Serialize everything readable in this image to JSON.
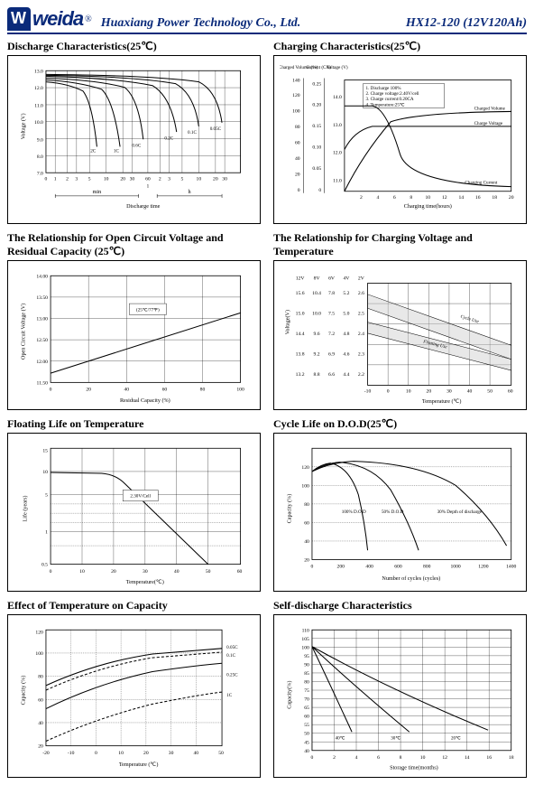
{
  "header": {
    "logo_text": "weida",
    "company": "Huaxiang Power Technology Co., Ltd.",
    "model": "HX12-120 (12V120Ah)"
  },
  "charts": {
    "discharge": {
      "title": "Discharge Characteristics(25℃)",
      "ylabel": "Voltage (V)",
      "xlabel": "Discharge time",
      "xunits": [
        "min",
        "h"
      ],
      "yticks": [
        "7.0",
        "8.0",
        "9.0",
        "10.0",
        "11.0",
        "12.0",
        "13.0"
      ],
      "xticks_min": [
        "0",
        "1",
        "2",
        "3",
        "5",
        "10",
        "20",
        "30",
        "60"
      ],
      "xticks_h": [
        "1",
        "2",
        "3",
        "5",
        "10",
        "20",
        "30"
      ],
      "series_labels": [
        "2C",
        "1C",
        "0.6C",
        "0.2C",
        "0.1C",
        "0.05C"
      ]
    },
    "charging": {
      "title": "Charging Characteristics(25℃)",
      "yaxes": [
        "Charged Volume (%)",
        "Current (CA)",
        "Voltage (V)"
      ],
      "xlabel": "Charging time(hours)",
      "yticks_vol": [
        "0",
        "20",
        "40",
        "60",
        "80",
        "100",
        "120",
        "140"
      ],
      "yticks_cur": [
        "0",
        "0.05",
        "0.10",
        "0.15",
        "0.20",
        "0.25"
      ],
      "yticks_v": [
        "11.0",
        "12.0",
        "13.0",
        "14.0"
      ],
      "xticks": [
        "2",
        "4",
        "6",
        "8",
        "10",
        "12",
        "14",
        "16",
        "18",
        "20"
      ],
      "notes": [
        "1. Discharge 100%",
        "2. Charge voltage:2.40V/cell",
        "3. Charge current:0.20CA",
        "4. Temperature:25℃"
      ],
      "curve_labels": [
        "Charged Volume",
        "Charge Voltage",
        "Charging Current"
      ]
    },
    "ocv": {
      "title": "The Relationship for Open Circuit Voltage and Residual Capacity (25℃)",
      "ylabel": "Open Circuit Voltage (V)",
      "xlabel": "Residual Capacity (%)",
      "yticks": [
        "11.50",
        "12.00",
        "12.50",
        "13.00",
        "13.50",
        "14.00"
      ],
      "xticks": [
        "0",
        "20",
        "40",
        "60",
        "80",
        "100"
      ],
      "note": "(25℃/77℉)"
    },
    "charge_temp": {
      "title": "The Relationship for Charging Voltage and Temperature",
      "ylabel": "Voltage(V)",
      "xlabel": "Temperature (℃)",
      "col_headers": [
        "12V",
        "8V",
        "6V",
        "4V",
        "2V"
      ],
      "rows": [
        [
          "15.6",
          "10.4",
          "7.8",
          "5.2",
          "2.6"
        ],
        [
          "15.0",
          "10.0",
          "7.5",
          "5.0",
          "2.5"
        ],
        [
          "14.4",
          " 9.6",
          "7.2",
          "4.8",
          "2.4"
        ],
        [
          "13.8",
          " 9.2",
          "6.9",
          "4.6",
          "2.3"
        ],
        [
          "13.2",
          " 8.8",
          "6.6",
          "4.4",
          "2.2"
        ]
      ],
      "xticks": [
        "-10",
        "0",
        "10",
        "20",
        "30",
        "40",
        "50",
        "60"
      ],
      "curve_labels": [
        "Cycle Use",
        "Floating Use"
      ]
    },
    "floating_life": {
      "title": "Floating Life on Temperature",
      "ylabel": "Life (years)",
      "xlabel": "Temperature(℃)",
      "yticks": [
        "0.5",
        "1",
        "5",
        "10",
        "15"
      ],
      "xticks": [
        "0",
        "10",
        "20",
        "30",
        "40",
        "50",
        "60"
      ],
      "note": "2.30V/Cell"
    },
    "cycle_life": {
      "title": "Cycle Life on D.O.D(25℃)",
      "ylabel": "Capacity (%)",
      "xlabel": "Number of cycles (cycles)",
      "yticks": [
        "20",
        "40",
        "60",
        "80",
        "100",
        "120"
      ],
      "xticks": [
        "0",
        "200",
        "400",
        "600",
        "800",
        "1000",
        "1200",
        "1400"
      ],
      "curve_labels": [
        "100% D.O.D",
        "50% D.O.D",
        "30% Depth of discharge"
      ]
    },
    "temp_cap": {
      "title": "Effect of Temperature on Capacity",
      "ylabel": "Capacity (%)",
      "xlabel": "Temperature (℃)",
      "yticks": [
        "20",
        "40",
        "60",
        "80",
        "100",
        "120"
      ],
      "xticks": [
        "-20",
        "-10",
        "0",
        "10",
        "20",
        "30",
        "40",
        "50"
      ],
      "curve_labels": [
        "0.05C",
        "0.1C",
        "0.25C",
        "1C"
      ]
    },
    "self_discharge": {
      "title": "Self-discharge Characteristics",
      "ylabel": "Capacity(%)",
      "xlabel": "Storage time(months)",
      "yticks": [
        "40",
        "45",
        "50",
        "55",
        "60",
        "65",
        "70",
        "75",
        "80",
        "85",
        "90",
        "95",
        "100",
        "105",
        "110"
      ],
      "xticks": [
        "0",
        "2",
        "4",
        "6",
        "8",
        "10",
        "12",
        "14",
        "16",
        "18"
      ],
      "curve_labels": [
        "40℃",
        "30℃",
        "20℃"
      ]
    }
  }
}
